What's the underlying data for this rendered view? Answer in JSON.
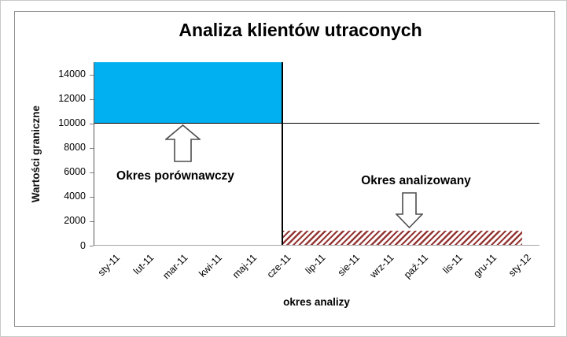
{
  "chart_data": {
    "type": "area",
    "title": "Analiza klientów utraconych",
    "xlabel": "okres analizy",
    "ylabel": "Wartości graniczne",
    "categories": [
      "sty-11",
      "lut-11",
      "mar-11",
      "kwi-11",
      "maj-11",
      "cze-11",
      "lip-11",
      "sie-11",
      "wrz-11",
      "paź-11",
      "lis-11",
      "gru-11",
      "sty-12"
    ],
    "ylim": [
      0,
      15000
    ],
    "yticks": [
      0,
      2000,
      4000,
      6000,
      8000,
      10000,
      12000,
      14000
    ],
    "grid": false,
    "legend": "none",
    "regions": [
      {
        "name": "Okres porównawczy",
        "x_start": "sty-11",
        "x_end": "cze-11",
        "y_from": 10000,
        "y_to": 15000,
        "fill": "solid",
        "color": "#00B0F0"
      },
      {
        "name": "Okres analizowany",
        "x_start": "cze-11",
        "x_end": "sty-12",
        "y_from": 0,
        "y_to": 1200,
        "fill": "diagonal-hatch",
        "color": "#953735"
      }
    ],
    "reference_lines": [
      {
        "axis": "y",
        "value": 10000,
        "color": "#000000"
      },
      {
        "axis": "x",
        "value": "cze-11",
        "color": "#000000"
      }
    ],
    "annotations": [
      {
        "text": "Okres porównawczy",
        "arrow": "up"
      },
      {
        "text": "Okres analizowany",
        "arrow": "down"
      }
    ]
  },
  "colors": {
    "comparison_fill": "#00B0F0",
    "analyzed_hatch": "#953735",
    "frame_border": "#8f8f8f",
    "axis_line": "#a6a6a6",
    "arrow_outline": "#4d4d4d"
  }
}
